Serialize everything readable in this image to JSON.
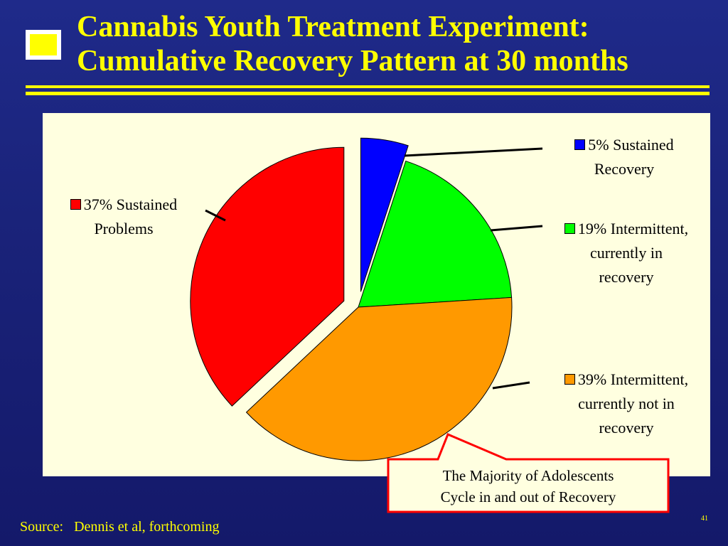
{
  "slide": {
    "title_line1": "Cannabis Youth Treatment Experiment:",
    "title_line2": "Cumulative Recovery Pattern at 30 months",
    "source_label": "Source:",
    "source_text": "Dennis et al, forthcoming",
    "page_number": "41",
    "callout_line1": "The Majority of Adolescents",
    "callout_line2": "Cycle in and out of Recovery"
  },
  "colors": {
    "title": "#ffff00",
    "background": "#1a237a",
    "panel": "#ffffe0",
    "callout_border": "#ff0000",
    "callout_fill": "#ffffe0"
  },
  "chart_data": {
    "type": "pie",
    "slices": [
      {
        "label_line1": "5% Sustained",
        "label_line2": "Recovery",
        "label_line3": "",
        "value": 5,
        "color": "#0000ff",
        "exploded": true
      },
      {
        "label_line1": "19% Intermittent,",
        "label_line2": "currently in",
        "label_line3": "recovery",
        "value": 19,
        "color": "#00ff00",
        "exploded": false
      },
      {
        "label_line1": "39% Intermittent,",
        "label_line2": "currently not in",
        "label_line3": "recovery",
        "value": 39,
        "color": "#ff9900",
        "exploded": false
      },
      {
        "label_line1": "37% Sustained",
        "label_line2": "Problems",
        "label_line3": "",
        "value": 37,
        "color": "#ff0000",
        "exploded": true
      }
    ]
  }
}
